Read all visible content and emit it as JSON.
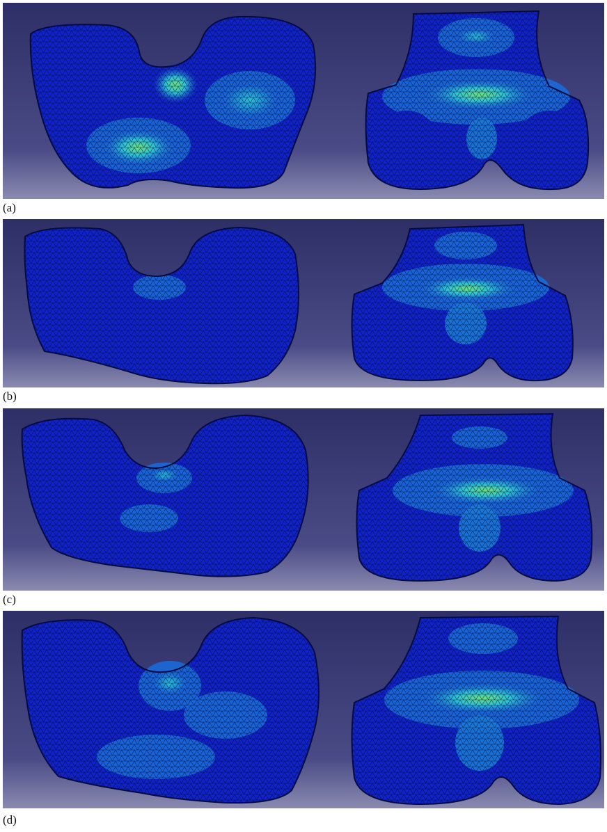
{
  "figure": {
    "panels": [
      {
        "label": "(a)",
        "description_icon": "fem-stress-mesh-femur"
      },
      {
        "label": "(b)",
        "description_icon": "fem-stress-mesh-femur"
      },
      {
        "label": "(c)",
        "description_icon": "fem-stress-mesh-femur"
      },
      {
        "label": "(d)",
        "description_icon": "fem-stress-mesh-femur"
      }
    ],
    "colors": {
      "background_top": "#2e2f66",
      "background_bottom": "#7e7ea8",
      "bone_base": "#1022c8",
      "stress_mid": "#1a6ad8",
      "stress_high": "#2cc0d8",
      "stress_peak": "#6ee07a",
      "mesh_lines": "#000a30"
    }
  }
}
